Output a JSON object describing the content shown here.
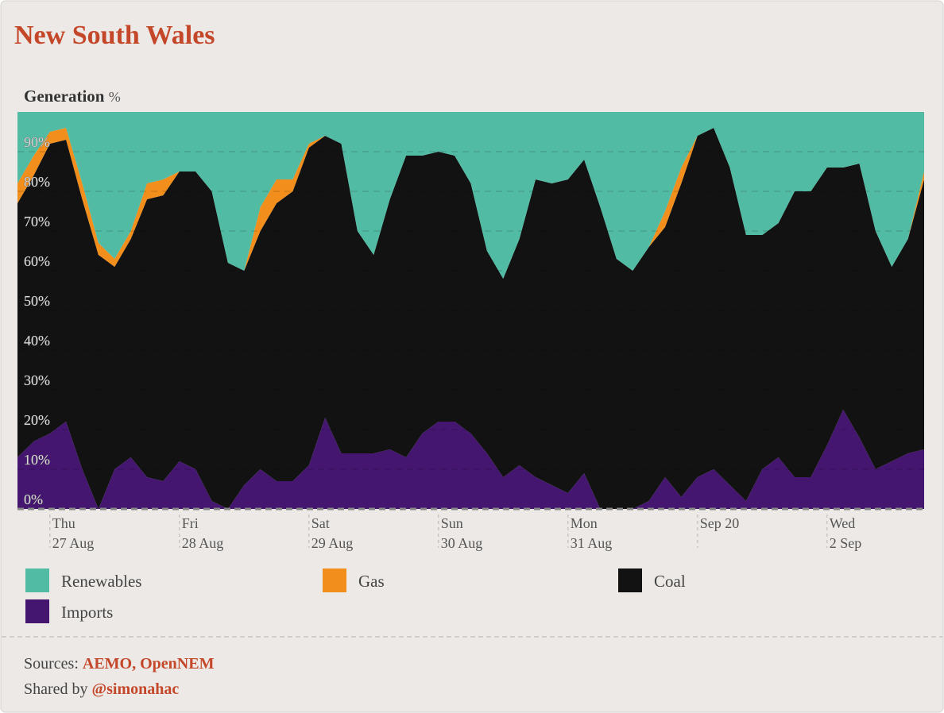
{
  "chart_data": {
    "type": "area",
    "stacked": true,
    "title": "New South Wales",
    "y_label": "Generation",
    "y_unit": "%",
    "categories": [
      null,
      null,
      {
        "day": "Thu",
        "date": "27 Aug"
      },
      null,
      null,
      null,
      null,
      null,
      null,
      null,
      {
        "day": "Fri",
        "date": "28 Aug"
      },
      null,
      null,
      null,
      null,
      null,
      null,
      null,
      {
        "day": "Sat",
        "date": "29 Aug"
      },
      null,
      null,
      null,
      null,
      null,
      null,
      null,
      {
        "day": "Sun",
        "date": "30 Aug"
      },
      null,
      null,
      null,
      null,
      null,
      null,
      null,
      {
        "day": "Mon",
        "date": "31 Aug"
      },
      null,
      null,
      null,
      null,
      null,
      null,
      null,
      {
        "day": "Sep 20"
      },
      null,
      null,
      null,
      null,
      null,
      null,
      null,
      {
        "day": "Wed",
        "date": "2 Sep"
      },
      null,
      null,
      null,
      null,
      null,
      null
    ],
    "series": [
      {
        "name": "Renewables",
        "color": "#52bba3",
        "values": [
          18,
          11,
          5,
          4,
          18,
          33,
          37,
          30,
          18,
          17,
          15,
          15,
          20,
          38,
          40,
          24,
          17,
          17,
          8,
          6,
          8,
          30,
          36,
          22,
          11,
          11,
          10,
          11,
          18,
          35,
          42,
          32,
          17,
          18,
          17,
          12,
          24,
          37,
          40,
          34,
          25,
          14,
          6,
          4,
          14,
          31,
          31,
          28,
          20,
          20,
          14,
          14,
          13,
          30,
          39,
          32,
          15
        ]
      },
      {
        "name": "Gas",
        "color": "#f28e1c",
        "values": [
          5,
          5,
          3,
          3,
          4,
          3,
          2,
          2,
          4,
          4,
          0,
          0,
          0,
          0,
          0,
          6,
          6,
          3,
          1,
          0,
          0,
          0,
          0,
          0,
          0,
          0,
          0,
          0,
          0,
          0,
          0,
          0,
          0,
          0,
          0,
          0,
          0,
          0,
          0,
          0,
          4,
          4,
          0,
          0,
          0,
          0,
          0,
          0,
          0,
          0,
          0,
          0,
          0,
          0,
          0,
          0,
          2
        ]
      },
      {
        "name": "Coal",
        "color": "#121212",
        "values": [
          64,
          67,
          73,
          71,
          68,
          64,
          51,
          55,
          70,
          72,
          73,
          75,
          78,
          62,
          54,
          60,
          70,
          73,
          80,
          71,
          78,
          56,
          50,
          63,
          76,
          70,
          68,
          67,
          63,
          51,
          50,
          57,
          75,
          76,
          79,
          79,
          76,
          63,
          60,
          64,
          63,
          79,
          86,
          86,
          80,
          67,
          59,
          59,
          72,
          72,
          70,
          61,
          69,
          60,
          49,
          54,
          68
        ]
      },
      {
        "name": "Imports",
        "color": "#441670",
        "values": [
          13,
          17,
          19,
          22,
          10,
          0,
          10,
          13,
          8,
          7,
          12,
          10,
          2,
          0,
          6,
          10,
          7,
          7,
          11,
          23,
          14,
          14,
          14,
          15,
          13,
          19,
          22,
          22,
          19,
          14,
          8,
          11,
          8,
          6,
          4,
          9,
          0,
          0,
          0,
          2,
          8,
          3,
          8,
          10,
          6,
          2,
          10,
          13,
          8,
          8,
          16,
          25,
          18,
          10,
          12,
          14,
          15
        ]
      }
    ],
    "ylim": [
      0,
      100
    ],
    "yticks": [
      {
        "value": 0,
        "label": "0%"
      },
      {
        "value": 10,
        "label": "10%"
      },
      {
        "value": 20,
        "label": "20%"
      },
      {
        "value": 30,
        "label": "30%"
      },
      {
        "value": 40,
        "label": "40%"
      },
      {
        "value": 50,
        "label": "50%"
      },
      {
        "value": 60,
        "label": "60%"
      },
      {
        "value": 70,
        "label": "70%"
      },
      {
        "value": 80,
        "label": "80%"
      },
      {
        "value": 90,
        "label": "90%"
      }
    ],
    "grid": true
  },
  "footer": {
    "sources_label": "Sources:",
    "sources": "AEMO, OpenNEM",
    "shared_label": "Shared by",
    "shared": "@simonahac"
  }
}
